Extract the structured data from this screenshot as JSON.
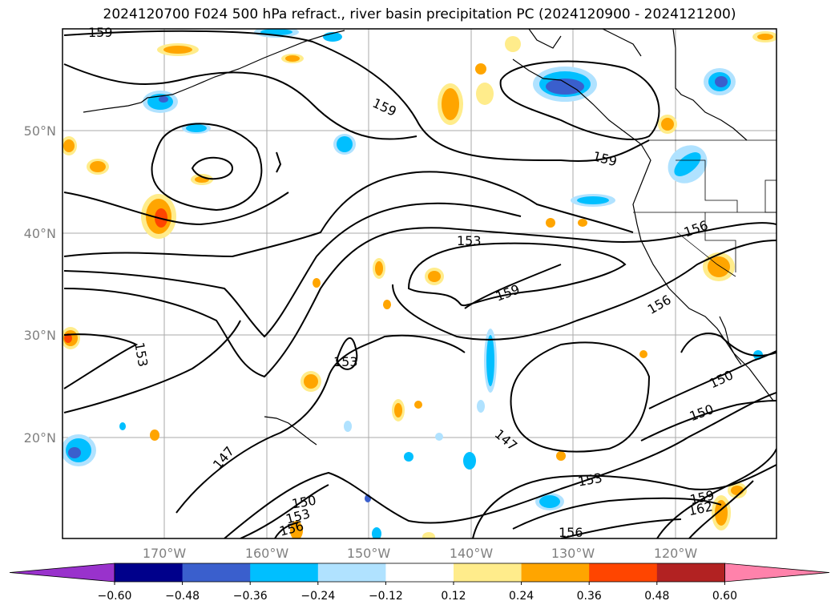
{
  "title": "2024120700 F024 500 hPa refract., river basin precipitation PC (2024120900 - 2024121200)",
  "lat_labels": [
    "50°N",
    "40°N",
    "30°N",
    "20°N"
  ],
  "lon_labels": [
    "170°W",
    "160°W",
    "150°W",
    "140°W",
    "130°W",
    "120°W"
  ],
  "contour_labels": [
    "159",
    "159",
    "159",
    "153",
    "159",
    "156",
    "156",
    "153",
    "153",
    "150",
    "150",
    "147",
    "147",
    "153",
    "150",
    "153",
    "156",
    "156",
    "159",
    "162"
  ],
  "colorbar": {
    "ticks": [
      "−0.60",
      "−0.48",
      "−0.36",
      "−0.24",
      "−0.12",
      "0.12",
      "0.24",
      "0.36",
      "0.48",
      "0.60"
    ],
    "colors": [
      "#9932cc",
      "#00008b",
      "#3a5fcd",
      "#00bfff",
      "#b0e2ff",
      "#ffffff",
      "#ffec8b",
      "#ffa500",
      "#ff4500",
      "#b22222",
      "#ff82ab"
    ]
  },
  "colors": {
    "grid": "#aaaaaa",
    "labels": "#808080"
  }
}
